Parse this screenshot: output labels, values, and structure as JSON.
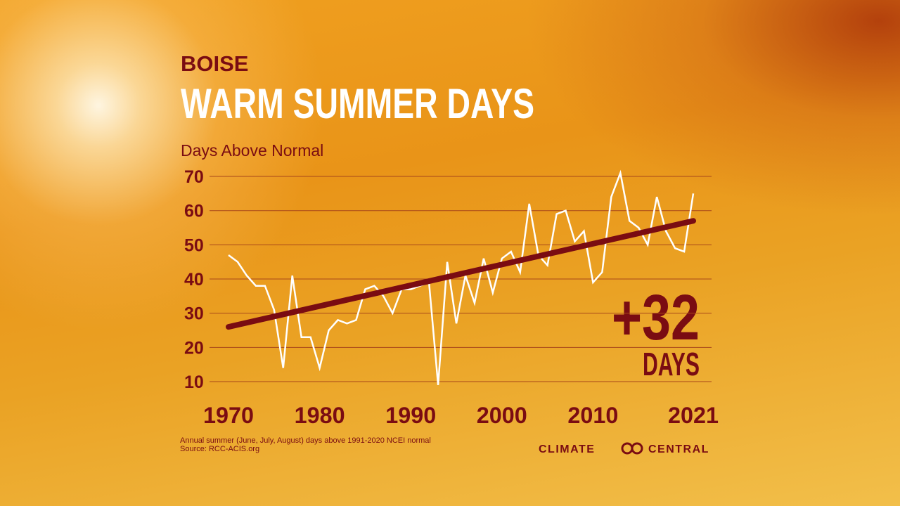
{
  "chart_data": {
    "type": "line",
    "supertitle": "BOISE",
    "title": "WARM SUMMER DAYS",
    "y_label": "Days Above Normal",
    "x": [
      1970,
      1971,
      1972,
      1973,
      1974,
      1975,
      1976,
      1977,
      1978,
      1979,
      1980,
      1981,
      1982,
      1983,
      1984,
      1985,
      1986,
      1987,
      1988,
      1989,
      1990,
      1991,
      1992,
      1993,
      1994,
      1995,
      1996,
      1997,
      1998,
      1999,
      2000,
      2001,
      2002,
      2003,
      2004,
      2005,
      2006,
      2007,
      2008,
      2009,
      2010,
      2011,
      2012,
      2013,
      2014,
      2015,
      2016,
      2017,
      2018,
      2019,
      2020,
      2021
    ],
    "values": [
      47,
      45,
      41,
      38,
      38,
      31,
      14,
      41,
      23,
      23,
      14,
      25,
      28,
      27,
      28,
      37,
      38,
      35,
      30,
      37,
      37,
      38,
      39,
      9,
      45,
      27,
      41,
      33,
      46,
      36,
      46,
      48,
      42,
      62,
      47,
      44,
      59,
      60,
      51,
      54,
      39,
      42,
      64,
      71,
      57,
      55,
      50,
      64,
      54,
      49,
      48,
      65
    ],
    "color": "#ffffff",
    "trend": {
      "x": [
        1970,
        2021
      ],
      "values": [
        26,
        57
      ],
      "color": "#7a0c12"
    },
    "xlim": [
      1970,
      2021
    ],
    "xticks": [
      1970,
      1980,
      1990,
      2000,
      2010,
      2021
    ],
    "ylim": [
      8,
      72
    ],
    "yticks": [
      10,
      20,
      30,
      40,
      50,
      60,
      70
    ],
    "grid": true,
    "annotation": "+32",
    "annotation_unit": "DAYS",
    "footnote": [
      "Annual summer (June, July, August) days above 1991-2020 NCEI normal",
      "Source: RCC-ACIS.org"
    ],
    "logo": {
      "left": "CLIMATE",
      "right": "CENTRAL"
    }
  }
}
